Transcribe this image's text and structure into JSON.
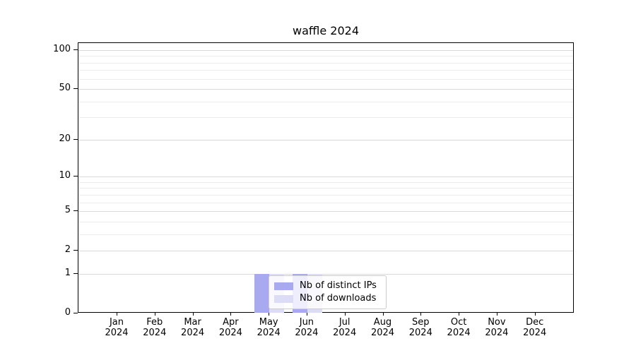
{
  "chart_data": {
    "type": "bar",
    "title": "waffle 2024",
    "categories": [
      "Jan 2024",
      "Feb 2024",
      "Mar 2024",
      "Apr 2024",
      "May 2024",
      "Jun 2024",
      "Jul 2024",
      "Aug 2024",
      "Sep 2024",
      "Oct 2024",
      "Nov 2024",
      "Dec 2024"
    ],
    "series": [
      {
        "name": "Nb of distinct IPs",
        "color": "#a9a9f0",
        "values": [
          0,
          0,
          0,
          0,
          1,
          1,
          0,
          0,
          0,
          0,
          0,
          0
        ]
      },
      {
        "name": "Nb of downloads",
        "color": "#dcdcf6",
        "values": [
          0,
          0,
          0,
          0,
          1,
          1,
          0,
          0,
          0,
          0,
          0,
          0
        ]
      }
    ],
    "xlabel": "",
    "ylabel": "",
    "yscale": "symlog",
    "ylim": [
      0,
      113
    ],
    "yticks": [
      100,
      50,
      20,
      10,
      5,
      2,
      1,
      0
    ],
    "y_minor_gridlines": [
      3,
      4,
      6,
      7,
      8,
      9,
      30,
      40,
      60,
      70,
      80,
      90
    ],
    "grid": "on",
    "legend": {
      "position": "inside-lower-center",
      "entries": [
        "Nb of distinct IPs",
        "Nb of downloads"
      ]
    },
    "colors": {
      "axis": "#000000",
      "text": "#000000",
      "major_grid": "#d9d9d9",
      "minor_grid": "#ececec",
      "legend_border": "#cccccc",
      "background": "#ffffff"
    }
  }
}
